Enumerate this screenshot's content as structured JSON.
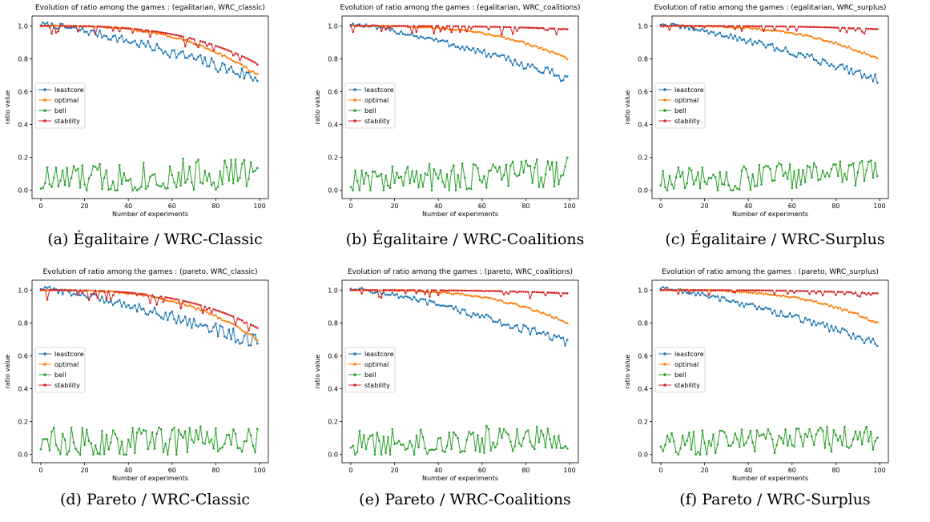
{
  "colors": {
    "leastcore": "#1f77b4",
    "optimal": "#ff7f0e",
    "bell": "#2ca02c",
    "stability": "#d62728"
  },
  "panels": [
    {
      "caption": "(a) Égalitaire / WRC-Classic",
      "chart_data": {
        "type": "line",
        "title": "Evolution of ratio among the games : (egalitarian, WRC_classic)",
        "xlabel": "Number of experiments",
        "ylabel": "ratio value",
        "xlim": [
          0,
          100
        ],
        "ylim": [
          0,
          1.0
        ],
        "xticks": [
          0,
          20,
          40,
          60,
          80,
          100
        ],
        "yticks": [
          0.0,
          0.2,
          0.4,
          0.6,
          0.8,
          1.0
        ],
        "legend": "center-left",
        "series": [
          {
            "name": "leastcore",
            "start": 1.01,
            "end": 0.68,
            "amp": 0.06
          },
          {
            "name": "optimal",
            "start": 1.0,
            "end": 0.7,
            "amp": 0.01
          },
          {
            "name": "bell",
            "start": 0.05,
            "end": 0.1,
            "amp": 0.1
          },
          {
            "name": "stability",
            "start": 1.0,
            "end": 0.77,
            "amp": 0.06
          }
        ]
      }
    },
    {
      "caption": "(b) Égalitaire / WRC-Coalitions",
      "chart_data": {
        "type": "line",
        "title": "Evolution of ratio among the games : (egalitarian, WRC_coalitions)",
        "xlabel": "Number of experiments",
        "ylabel": "ratio value",
        "xlim": [
          0,
          100
        ],
        "ylim": [
          0,
          1.0
        ],
        "xticks": [
          0,
          20,
          40,
          60,
          80,
          100
        ],
        "yticks": [
          0.0,
          0.2,
          0.4,
          0.6,
          0.8,
          1.0
        ],
        "legend": "center-left",
        "series": [
          {
            "name": "leastcore",
            "start": 1.01,
            "end": 0.68,
            "amp": 0.04
          },
          {
            "name": "optimal",
            "start": 1.0,
            "end": 0.8,
            "amp": 0.01
          },
          {
            "name": "bell",
            "start": 0.05,
            "end": 0.1,
            "amp": 0.09
          },
          {
            "name": "stability",
            "start": 1.0,
            "end": 0.98,
            "amp": 0.05
          }
        ]
      }
    },
    {
      "caption": "(c) Égalitaire / WRC-Surplus",
      "chart_data": {
        "type": "line",
        "title": "Evolution of ratio among the games : (egalitarian, WRC_surplus)",
        "xlabel": "Number of experiments",
        "ylabel": "ratio value",
        "xlim": [
          0,
          100
        ],
        "ylim": [
          0,
          1.0
        ],
        "xticks": [
          0,
          20,
          40,
          60,
          80,
          100
        ],
        "yticks": [
          0.0,
          0.2,
          0.4,
          0.6,
          0.8,
          1.0
        ],
        "legend": "center-left",
        "series": [
          {
            "name": "leastcore",
            "start": 1.01,
            "end": 0.68,
            "amp": 0.04
          },
          {
            "name": "optimal",
            "start": 1.0,
            "end": 0.8,
            "amp": 0.01
          },
          {
            "name": "bell",
            "start": 0.05,
            "end": 0.1,
            "amp": 0.08
          },
          {
            "name": "stability",
            "start": 1.0,
            "end": 0.98,
            "amp": 0.03
          }
        ]
      }
    },
    {
      "caption": "(d) Pareto / WRC-Classic",
      "chart_data": {
        "type": "line",
        "title": "Evolution of ratio among the games : (pareto, WRC_classic)",
        "xlabel": "Number of experiments",
        "ylabel": "ratio value",
        "xlim": [
          0,
          100
        ],
        "ylim": [
          0,
          1.0
        ],
        "xticks": [
          0,
          20,
          40,
          60,
          80,
          100
        ],
        "yticks": [
          0.0,
          0.2,
          0.4,
          0.6,
          0.8,
          1.0
        ],
        "legend": "center-left",
        "series": [
          {
            "name": "leastcore",
            "start": 1.01,
            "end": 0.68,
            "amp": 0.06
          },
          {
            "name": "optimal",
            "start": 1.0,
            "end": 0.7,
            "amp": 0.01
          },
          {
            "name": "bell",
            "start": 0.05,
            "end": 0.1,
            "amp": 0.1
          },
          {
            "name": "stability",
            "start": 1.0,
            "end": 0.77,
            "amp": 0.06
          }
        ]
      }
    },
    {
      "caption": "(e) Pareto / WRC-Coalitions",
      "chart_data": {
        "type": "line",
        "title": "Evolution of ratio among the games : (pareto, WRC_coalitions)",
        "xlabel": "Number of experiments",
        "ylabel": "ratio value",
        "xlim": [
          0,
          100
        ],
        "ylim": [
          0,
          1.0
        ],
        "xticks": [
          0,
          20,
          40,
          60,
          80,
          100
        ],
        "yticks": [
          0.0,
          0.2,
          0.4,
          0.6,
          0.8,
          1.0
        ],
        "legend": "center-left",
        "series": [
          {
            "name": "leastcore",
            "start": 1.01,
            "end": 0.68,
            "amp": 0.04
          },
          {
            "name": "optimal",
            "start": 1.0,
            "end": 0.8,
            "amp": 0.01
          },
          {
            "name": "bell",
            "start": 0.05,
            "end": 0.1,
            "amp": 0.09
          },
          {
            "name": "stability",
            "start": 1.0,
            "end": 0.98,
            "amp": 0.05
          }
        ]
      }
    },
    {
      "caption": "(f) Pareto / WRC-Surplus",
      "chart_data": {
        "type": "line",
        "title": "Evolution of ratio among the games : (pareto, WRC_surplus)",
        "xlabel": "Number of experiments",
        "ylabel": "ratio value",
        "xlim": [
          0,
          100
        ],
        "ylim": [
          0,
          1.0
        ],
        "xticks": [
          0,
          20,
          40,
          60,
          80,
          100
        ],
        "yticks": [
          0.0,
          0.2,
          0.4,
          0.6,
          0.8,
          1.0
        ],
        "legend": "center-left",
        "series": [
          {
            "name": "leastcore",
            "start": 1.01,
            "end": 0.68,
            "amp": 0.04
          },
          {
            "name": "optimal",
            "start": 1.0,
            "end": 0.8,
            "amp": 0.01
          },
          {
            "name": "bell",
            "start": 0.05,
            "end": 0.1,
            "amp": 0.08
          },
          {
            "name": "stability",
            "start": 1.0,
            "end": 0.98,
            "amp": 0.03
          }
        ]
      }
    }
  ]
}
